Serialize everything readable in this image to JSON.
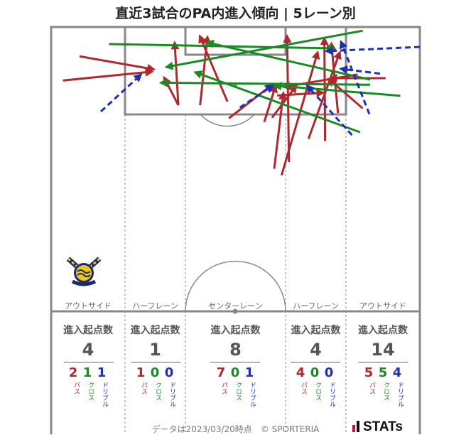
{
  "chart_data": {
    "type": "other",
    "title": "直近3試合のPA内進入傾向 | 5レーン別",
    "stat_header": "進入起点数",
    "labels": {
      "pass": "パス",
      "cross": "クロス",
      "dribble": "ドリブル"
    },
    "colors": {
      "pass": "#b0272d",
      "cross": "#1a8a25",
      "dribble": "#1d2fb5"
    },
    "lanes": [
      {
        "name": "アウトサイド",
        "total": "4",
        "pass": "2",
        "cross": "1",
        "dribble": "1"
      },
      {
        "name": "ハーフレーン",
        "total": "1",
        "pass": "1",
        "cross": "0",
        "dribble": "0"
      },
      {
        "name": "センターレーン",
        "total": "8",
        "pass": "7",
        "cross": "0",
        "dribble": "1"
      },
      {
        "name": "ハーフレーン",
        "total": "4",
        "pass": "4",
        "cross": "0",
        "dribble": "0"
      },
      {
        "name": "アウトサイド",
        "total": "14",
        "pass": "5",
        "cross": "5",
        "dribble": "4"
      }
    ],
    "entries": [
      {
        "kind": "pass",
        "from": [
          0.077,
          0.103
        ],
        "to": [
          0.279,
          0.149
        ]
      },
      {
        "kind": "pass",
        "from": [
          0.032,
          0.188
        ],
        "to": [
          0.274,
          0.157
        ]
      },
      {
        "kind": "pass",
        "from": [
          0.345,
          0.275
        ],
        "to": [
          0.306,
          0.177
        ]
      },
      {
        "kind": "pass",
        "from": [
          0.345,
          0.275
        ],
        "to": [
          0.335,
          0.054
        ]
      },
      {
        "kind": "pass",
        "from": [
          0.404,
          0.275
        ],
        "to": [
          0.424,
          0.034
        ]
      },
      {
        "kind": "pass",
        "from": [
          0.478,
          0.262
        ],
        "to": [
          0.403,
          0.031
        ]
      },
      {
        "kind": "pass",
        "from": [
          0.482,
          0.321
        ],
        "to": [
          0.599,
          0.203
        ]
      },
      {
        "kind": "pass",
        "from": [
          0.599,
          0.319
        ],
        "to": [
          0.665,
          0.206
        ]
      },
      {
        "kind": "pass",
        "from": [
          0.578,
          0.334
        ],
        "to": [
          0.609,
          0.206
        ]
      },
      {
        "kind": "pass",
        "from": [
          0.605,
          0.499
        ],
        "to": [
          0.63,
          0.231
        ]
      },
      {
        "kind": "pass",
        "from": [
          0.625,
          0.521
        ],
        "to": [
          0.723,
          0.088
        ]
      },
      {
        "kind": "pass",
        "from": [
          0.645,
          0.475
        ],
        "to": [
          0.64,
          0.031
        ]
      },
      {
        "kind": "pass",
        "from": [
          0.613,
          0.241
        ],
        "to": [
          0.738,
          0.231
        ]
      },
      {
        "kind": "pass",
        "from": [
          0.743,
          0.401
        ],
        "to": [
          0.741,
          0.039
        ]
      },
      {
        "kind": "pass",
        "from": [
          0.698,
          0.393
        ],
        "to": [
          0.783,
          0.088
        ]
      },
      {
        "kind": "pass",
        "from": [
          0.778,
          0.303
        ],
        "to": [
          0.76,
          0.057
        ]
      },
      {
        "kind": "pass",
        "from": [
          0.845,
          0.286
        ],
        "to": [
          0.753,
          0.183
        ]
      },
      {
        "kind": "pass",
        "from": [
          0.907,
          0.18
        ],
        "to": [
          0.757,
          0.18
        ]
      },
      {
        "kind": "pass",
        "from": [
          0.831,
          0.167
        ],
        "to": [
          0.63,
          0.211
        ]
      },
      {
        "kind": "cross",
        "from": [
          0.157,
          0.06
        ],
        "to": [
          0.766,
          0.075
        ]
      },
      {
        "kind": "cross",
        "from": [
          0.845,
          0.013
        ],
        "to": [
          0.312,
          0.141
        ]
      },
      {
        "kind": "cross",
        "from": [
          0.865,
          0.185
        ],
        "to": [
          0.422,
          0.054
        ]
      },
      {
        "kind": "cross",
        "from": [
          0.865,
          0.203
        ],
        "to": [
          0.297,
          0.196
        ]
      },
      {
        "kind": "cross",
        "from": [
          0.947,
          0.242
        ],
        "to": [
          0.606,
          0.206
        ]
      },
      {
        "kind": "cross",
        "from": [
          0.838,
          0.37
        ],
        "to": [
          0.39,
          0.159
        ]
      },
      {
        "kind": "dribble",
        "from": [
          0.135,
          0.297
        ],
        "to": [
          0.244,
          0.167
        ]
      },
      {
        "kind": "dribble",
        "from": [
          0.512,
          0.283
        ],
        "to": [
          0.602,
          0.206
        ]
      },
      {
        "kind": "dribble",
        "from": [
          0.816,
          0.38
        ],
        "to": [
          0.694,
          0.206
        ]
      },
      {
        "kind": "dribble",
        "from": [
          0.863,
          0.306
        ],
        "to": [
          0.786,
          0.051
        ]
      },
      {
        "kind": "dribble",
        "from": [
          0.892,
          0.164
        ],
        "to": [
          0.785,
          0.147
        ]
      },
      {
        "kind": "dribble",
        "from": [
          1.0,
          0.07
        ],
        "to": [
          0.746,
          0.085
        ]
      }
    ]
  },
  "footer": {
    "credit": "データは2023/03/20時点　© SPORTERIA",
    "logo_text": "STATs"
  }
}
